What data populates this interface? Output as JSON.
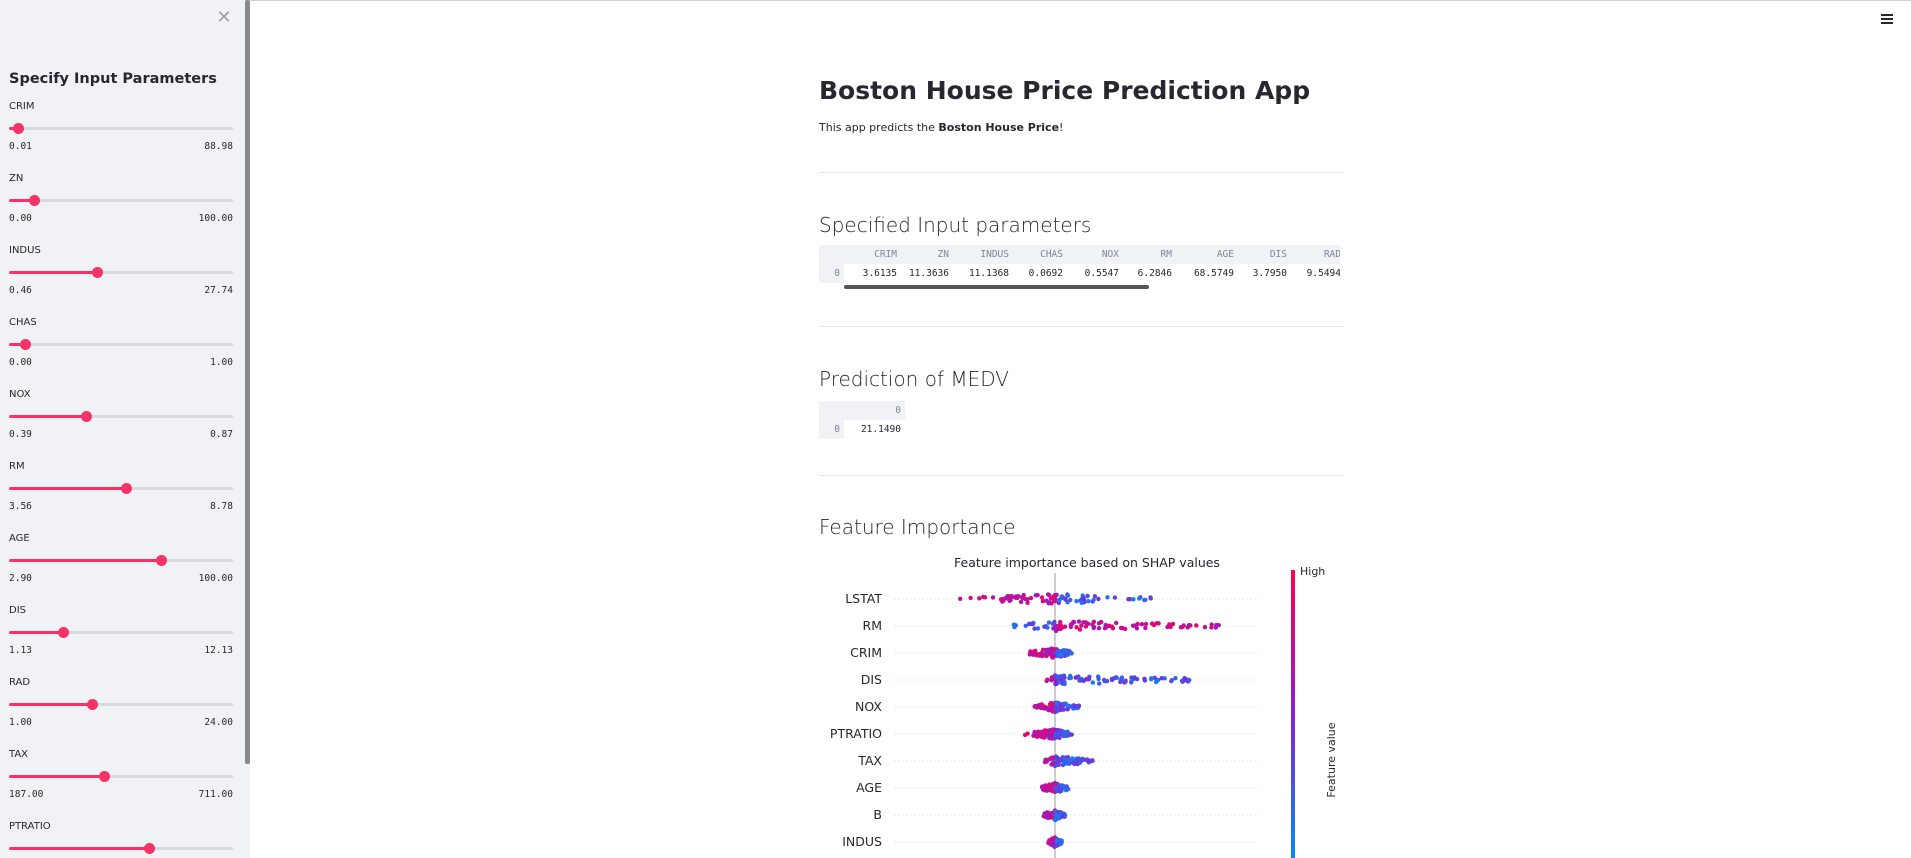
{
  "sidebar": {
    "close_icon": "close-icon",
    "header": "Specify Input Parameters",
    "sliders": [
      {
        "label": "CRIM",
        "min": "0.01",
        "max": "88.98",
        "value": 3.6135,
        "min_v": 0.01,
        "max_v": 88.98
      },
      {
        "label": "ZN",
        "min": "0.00",
        "max": "100.00",
        "value": 11.3636,
        "min_v": 0,
        "max_v": 100
      },
      {
        "label": "INDUS",
        "min": "0.46",
        "max": "27.74",
        "value": 11.1368,
        "min_v": 0.46,
        "max_v": 27.74
      },
      {
        "label": "CHAS",
        "min": "0.00",
        "max": "1.00",
        "value": 0.0692,
        "min_v": 0,
        "max_v": 1
      },
      {
        "label": "NOX",
        "min": "0.39",
        "max": "0.87",
        "value": 0.5547,
        "min_v": 0.39,
        "max_v": 0.87
      },
      {
        "label": "RM",
        "min": "3.56",
        "max": "8.78",
        "value": 6.2846,
        "min_v": 3.56,
        "max_v": 8.78
      },
      {
        "label": "AGE",
        "min": "2.90",
        "max": "100.00",
        "value": 68.5749,
        "min_v": 2.9,
        "max_v": 100
      },
      {
        "label": "DIS",
        "min": "1.13",
        "max": "12.13",
        "value": 3.795,
        "min_v": 1.13,
        "max_v": 12.13
      },
      {
        "label": "RAD",
        "min": "1.00",
        "max": "24.00",
        "value": 9.5494,
        "min_v": 1,
        "max_v": 24
      },
      {
        "label": "TAX",
        "min": "187.00",
        "max": "711.00",
        "value": 408.2372,
        "min_v": 187,
        "max_v": 711
      },
      {
        "label": "PTRATIO",
        "min": "",
        "max": "",
        "value": 18.4555,
        "min_v": 12.6,
        "max_v": 22
      }
    ]
  },
  "header": {
    "menu_icon": "hamburger-menu-icon"
  },
  "main": {
    "title": "Boston House Price Prediction App",
    "desc_prefix": "This app predicts the ",
    "desc_bold": "Boston House Price",
    "desc_suffix": "!",
    "section_params": "Specified Input parameters",
    "section_prediction": "Prediction of MEDV",
    "section_importance": "Feature Importance",
    "params_table": {
      "columns": [
        "CRIM",
        "ZN",
        "INDUS",
        "CHAS",
        "NOX",
        "RM",
        "AGE",
        "DIS",
        "RAD"
      ],
      "index": "0",
      "values": [
        "3.6135",
        "11.3636",
        "11.1368",
        "0.0692",
        "0.5547",
        "6.2846",
        "68.5749",
        "3.7950",
        "9.5494"
      ]
    },
    "prediction_table": {
      "column": "0",
      "index": "0",
      "value": "21.1490"
    }
  },
  "chart_data": {
    "type": "scatter",
    "title": "Feature importance based on SHAP values",
    "features": [
      "LSTAT",
      "RM",
      "CRIM",
      "DIS",
      "NOX",
      "PTRATIO",
      "TAX",
      "AGE",
      "B",
      "INDUS"
    ],
    "colorbar": {
      "high_label": "High",
      "axis_label": "Feature value",
      "colors": [
        "#ff0052",
        "#8c1fd0",
        "#008bfb"
      ]
    },
    "spread_ranges": [
      {
        "feature": "LSTAT",
        "min": -6,
        "max": 6
      },
      {
        "feature": "RM",
        "min": -2.5,
        "max": 10
      },
      {
        "feature": "CRIM",
        "min": -1.5,
        "max": 1
      },
      {
        "feature": "DIS",
        "min": -0.5,
        "max": 8
      },
      {
        "feature": "NOX",
        "min": -1.2,
        "max": 1.5
      },
      {
        "feature": "PTRATIO",
        "min": -1.8,
        "max": 1
      },
      {
        "feature": "TAX",
        "min": -0.6,
        "max": 2.4
      },
      {
        "feature": "AGE",
        "min": -0.8,
        "max": 0.8
      },
      {
        "feature": "B",
        "min": -0.7,
        "max": 0.6
      },
      {
        "feature": "INDUS",
        "min": -0.4,
        "max": 0.4
      }
    ]
  }
}
